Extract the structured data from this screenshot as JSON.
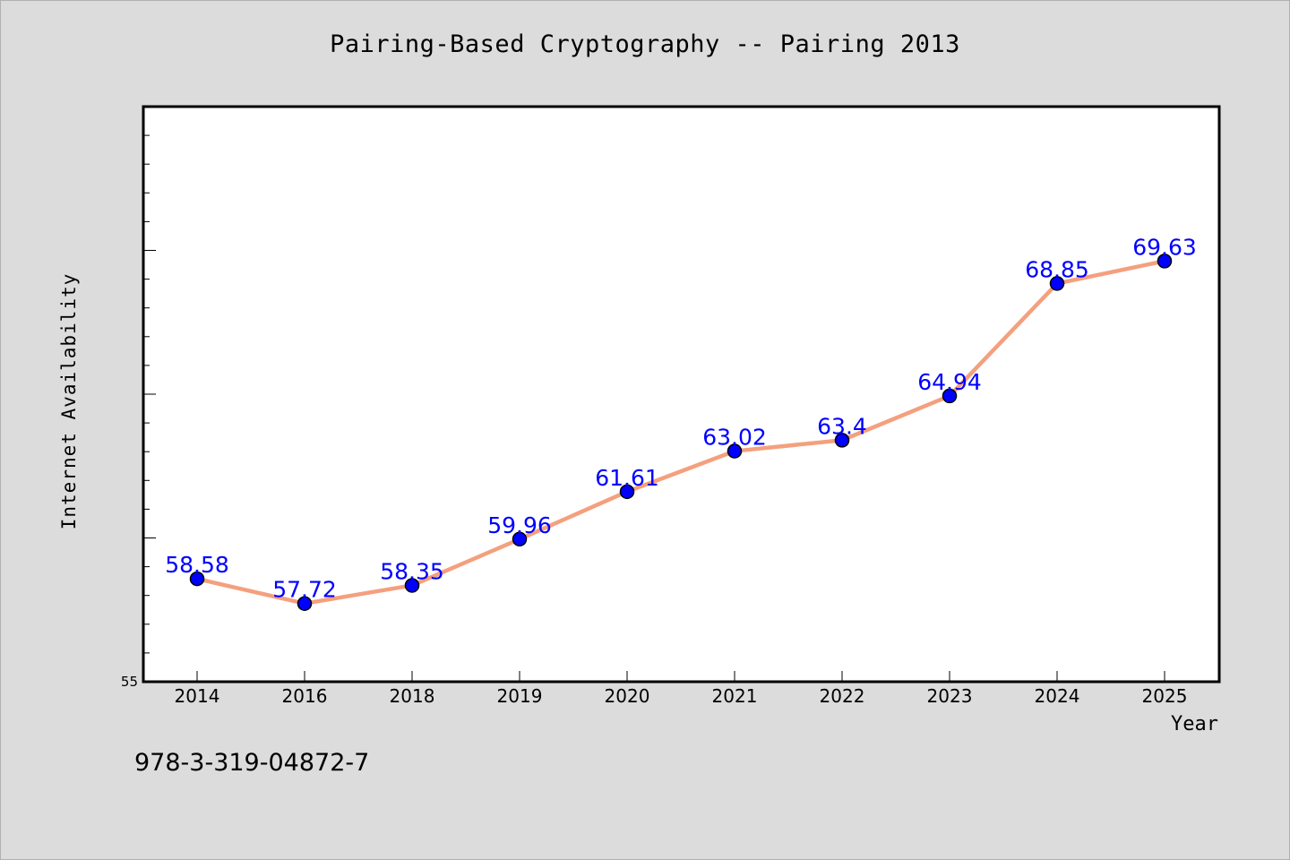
{
  "chart_data": {
    "type": "line",
    "title": "Pairing-Based Cryptography -- Pairing 2013",
    "xlabel": "Year",
    "ylabel": "Internet Availability",
    "categories": [
      "2014",
      "2016",
      "2018",
      "2019",
      "2020",
      "2021",
      "2022",
      "2023",
      "2024",
      "2025"
    ],
    "series": [
      {
        "values": [
          58.58,
          57.72,
          58.35,
          59.96,
          61.61,
          63.02,
          63.4,
          64.94,
          68.85,
          69.63
        ],
        "value_labels": [
          "58.58",
          "57.72",
          "58.35",
          "59.96",
          "61.61",
          "63.02",
          "63.4",
          "64.94",
          "68.85",
          "69.63"
        ]
      }
    ],
    "ylim": [
      55,
      75
    ],
    "ytick_labels": [
      "55"
    ],
    "grid": false,
    "legend": "none",
    "colors": {
      "line": "#f4a07e",
      "marker": "#0000ff",
      "data_label": "#0000ff",
      "plot_background": "#ffffff",
      "page_background": "#dcdcdc"
    }
  },
  "footer_note": "978-3-319-04872-7"
}
